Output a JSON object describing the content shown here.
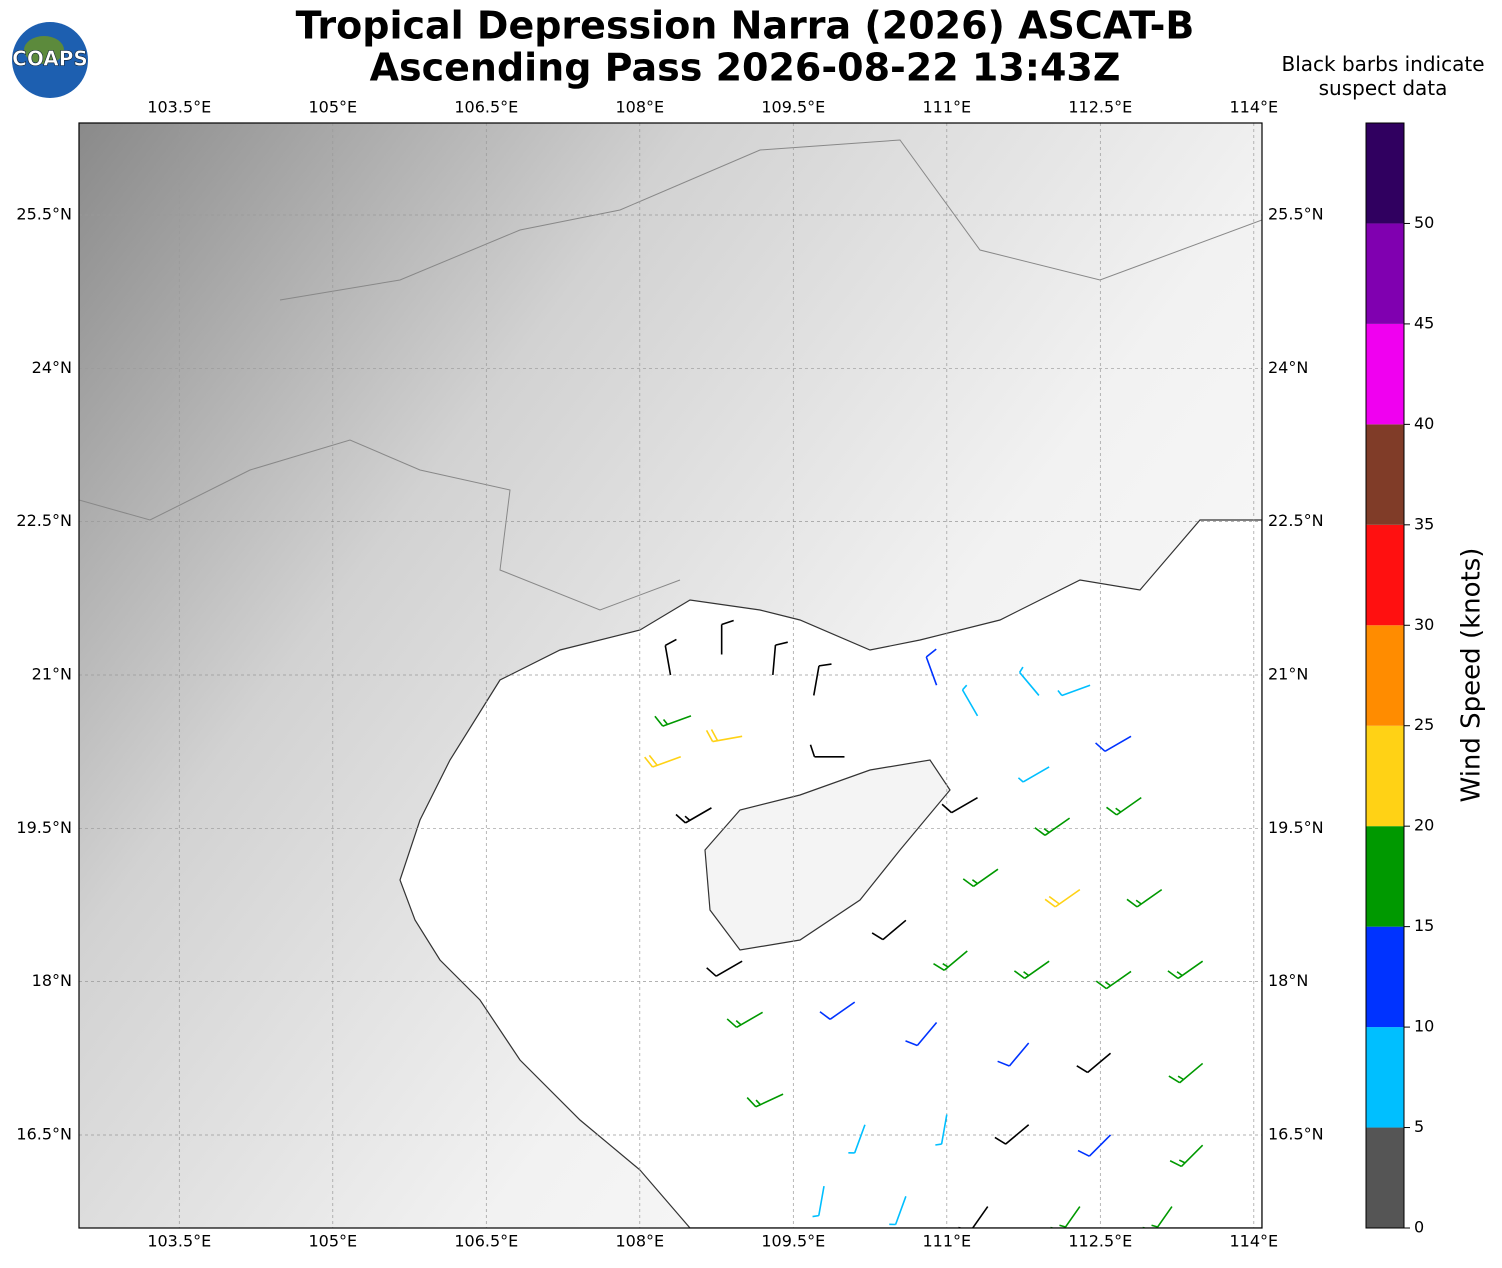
{
  "title": "Tropical Depression Narra (2026) ASCAT-B",
  "subtitle": "Ascending Pass 2026-08-22 13:43Z",
  "logo": "COAPS",
  "note": "Black barbs indicate suspect data",
  "map": {
    "xlim": [
      102.52,
      114.08
    ],
    "ylim": [
      15.59,
      26.4
    ],
    "xticks": [
      {
        "value": 103.5,
        "label": "103.5°E"
      },
      {
        "value": 105,
        "label": "105°E"
      },
      {
        "value": 106.5,
        "label": "106.5°E"
      },
      {
        "value": 108,
        "label": "108°E"
      },
      {
        "value": 109.5,
        "label": "109.5°E"
      },
      {
        "value": 111,
        "label": "111°E"
      },
      {
        "value": 112.5,
        "label": "112.5°E"
      },
      {
        "value": 114,
        "label": "114°E"
      }
    ],
    "yticks": [
      {
        "value": 16.5,
        "label": "16.5°N"
      },
      {
        "value": 18,
        "label": "18°N"
      },
      {
        "value": 19.5,
        "label": "19.5°N"
      },
      {
        "value": 21,
        "label": "21°N"
      },
      {
        "value": 22.5,
        "label": "22.5°N"
      },
      {
        "value": 24,
        "label": "24°N"
      },
      {
        "value": 25.5,
        "label": "25.5°N"
      }
    ],
    "grid": true
  },
  "colorbar": {
    "label": "Wind Speed (knots)",
    "ylim": [
      0,
      55
    ],
    "bounds": [
      0,
      5,
      10,
      15,
      20,
      25,
      30,
      35,
      40,
      45,
      50,
      55
    ],
    "colors": [
      "#555555",
      "#00bfff",
      "#0033ff",
      "#009900",
      "#ffd215",
      "#ff8c00",
      "#ff1010",
      "#803c28",
      "#f000f0",
      "#8000b0",
      "#300060"
    ],
    "ticks": [
      0,
      5,
      10,
      15,
      20,
      25,
      30,
      35,
      40,
      45,
      50
    ]
  },
  "suspect_color": "#000000",
  "barbs": [
    {
      "lon": 108.3,
      "lat": 21.0,
      "speed": 10,
      "dir": 350,
      "suspect": true
    },
    {
      "lon": 108.8,
      "lat": 21.2,
      "speed": 10,
      "dir": 0,
      "suspect": true
    },
    {
      "lon": 109.3,
      "lat": 21.0,
      "speed": 10,
      "dir": 5,
      "suspect": true
    },
    {
      "lon": 109.7,
      "lat": 20.8,
      "speed": 10,
      "dir": 10,
      "suspect": true
    },
    {
      "lon": 108.5,
      "lat": 20.6,
      "speed": 17,
      "dir": 250,
      "suspect": false
    },
    {
      "lon": 108.4,
      "lat": 20.2,
      "speed": 22,
      "dir": 250,
      "suspect": false
    },
    {
      "lon": 109.0,
      "lat": 20.4,
      "speed": 22,
      "dir": 260,
      "suspect": false
    },
    {
      "lon": 108.7,
      "lat": 19.7,
      "speed": 15,
      "dir": 240,
      "suspect": true
    },
    {
      "lon": 110.0,
      "lat": 20.2,
      "speed": 10,
      "dir": 270,
      "suspect": true
    },
    {
      "lon": 110.9,
      "lat": 20.9,
      "speed": 12,
      "dir": 340,
      "suspect": false
    },
    {
      "lon": 111.3,
      "lat": 20.6,
      "speed": 8,
      "dir": 330,
      "suspect": false
    },
    {
      "lon": 111.9,
      "lat": 20.8,
      "speed": 8,
      "dir": 320,
      "suspect": false
    },
    {
      "lon": 112.4,
      "lat": 20.9,
      "speed": 8,
      "dir": 250,
      "suspect": false
    },
    {
      "lon": 112.8,
      "lat": 20.4,
      "speed": 12,
      "dir": 240,
      "suspect": false
    },
    {
      "lon": 112.0,
      "lat": 20.1,
      "speed": 8,
      "dir": 240,
      "suspect": false
    },
    {
      "lon": 111.3,
      "lat": 19.8,
      "speed": 12,
      "dir": 240,
      "suspect": true
    },
    {
      "lon": 112.2,
      "lat": 19.6,
      "speed": 17,
      "dir": 235,
      "suspect": false
    },
    {
      "lon": 112.9,
      "lat": 19.8,
      "speed": 17,
      "dir": 235,
      "suspect": false
    },
    {
      "lon": 111.5,
      "lat": 19.1,
      "speed": 17,
      "dir": 235,
      "suspect": false
    },
    {
      "lon": 112.3,
      "lat": 18.9,
      "speed": 22,
      "dir": 235,
      "suspect": false
    },
    {
      "lon": 113.1,
      "lat": 18.9,
      "speed": 17,
      "dir": 235,
      "suspect": false
    },
    {
      "lon": 110.6,
      "lat": 18.6,
      "speed": 12,
      "dir": 230,
      "suspect": true
    },
    {
      "lon": 111.2,
      "lat": 18.3,
      "speed": 17,
      "dir": 230,
      "suspect": false
    },
    {
      "lon": 112.0,
      "lat": 18.2,
      "speed": 17,
      "dir": 235,
      "suspect": false
    },
    {
      "lon": 112.8,
      "lat": 18.1,
      "speed": 17,
      "dir": 235,
      "suspect": false
    },
    {
      "lon": 113.5,
      "lat": 18.2,
      "speed": 17,
      "dir": 235,
      "suspect": false
    },
    {
      "lon": 109.0,
      "lat": 18.2,
      "speed": 10,
      "dir": 240,
      "suspect": true
    },
    {
      "lon": 109.2,
      "lat": 17.7,
      "speed": 17,
      "dir": 240,
      "suspect": false
    },
    {
      "lon": 110.1,
      "lat": 17.8,
      "speed": 12,
      "dir": 235,
      "suspect": false
    },
    {
      "lon": 110.9,
      "lat": 17.6,
      "speed": 12,
      "dir": 220,
      "suspect": false
    },
    {
      "lon": 111.8,
      "lat": 17.4,
      "speed": 12,
      "dir": 220,
      "suspect": false
    },
    {
      "lon": 112.6,
      "lat": 17.3,
      "speed": 12,
      "dir": 230,
      "suspect": true
    },
    {
      "lon": 113.5,
      "lat": 17.2,
      "speed": 17,
      "dir": 230,
      "suspect": false
    },
    {
      "lon": 109.4,
      "lat": 16.9,
      "speed": 17,
      "dir": 245,
      "suspect": false
    },
    {
      "lon": 110.2,
      "lat": 16.6,
      "speed": 8,
      "dir": 200,
      "suspect": false
    },
    {
      "lon": 111.0,
      "lat": 16.7,
      "speed": 8,
      "dir": 190,
      "suspect": false
    },
    {
      "lon": 111.8,
      "lat": 16.6,
      "speed": 10,
      "dir": 230,
      "suspect": true
    },
    {
      "lon": 112.6,
      "lat": 16.5,
      "speed": 12,
      "dir": 225,
      "suspect": false
    },
    {
      "lon": 113.5,
      "lat": 16.4,
      "speed": 17,
      "dir": 225,
      "suspect": false
    },
    {
      "lon": 109.8,
      "lat": 16.0,
      "speed": 8,
      "dir": 190,
      "suspect": false
    },
    {
      "lon": 110.6,
      "lat": 15.9,
      "speed": 8,
      "dir": 200,
      "suspect": false
    },
    {
      "lon": 111.4,
      "lat": 15.8,
      "speed": 10,
      "dir": 215,
      "suspect": true
    },
    {
      "lon": 112.3,
      "lat": 15.8,
      "speed": 17,
      "dir": 215,
      "suspect": false
    },
    {
      "lon": 113.2,
      "lat": 15.8,
      "speed": 17,
      "dir": 215,
      "suspect": false
    }
  ]
}
